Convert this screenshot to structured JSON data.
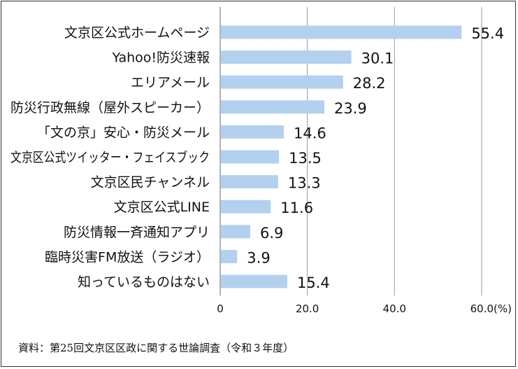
{
  "chart_data": {
    "type": "bar",
    "orientation": "horizontal",
    "categories": [
      "文京区公式ホームページ",
      "Yahoo!防災速報",
      "エリアメール",
      "防災行政無線（屋外スピーカー）",
      "「文の京」安心・防災メール",
      "文京区公式ツイッター・フェイスブック",
      "文京区民チャンネル",
      "文京区公式LINE",
      "防災情報一斉通知アプリ",
      "臨時災害FM放送（ラジオ）",
      "知っているものはない"
    ],
    "values": [
      55.4,
      30.1,
      28.2,
      23.9,
      14.6,
      13.5,
      13.3,
      11.6,
      6.9,
      3.9,
      15.4
    ],
    "value_labels": [
      "55.4",
      "30.1",
      "28.2",
      "23.9",
      "14.6",
      "13.5",
      "13.3",
      "11.6",
      "6.9",
      "3.9",
      "15.4"
    ],
    "xlim": [
      0,
      60
    ],
    "xticks": [
      0,
      20,
      40,
      60
    ],
    "xtick_labels": [
      "0",
      "20.0",
      "40.0",
      "60.0(%)"
    ],
    "grid": true,
    "bar_color": "#b3d1ef",
    "grid_color": "#9a9a9a",
    "source": "資料：第25回文京区区政に関する世論調査（令和３年度）"
  }
}
